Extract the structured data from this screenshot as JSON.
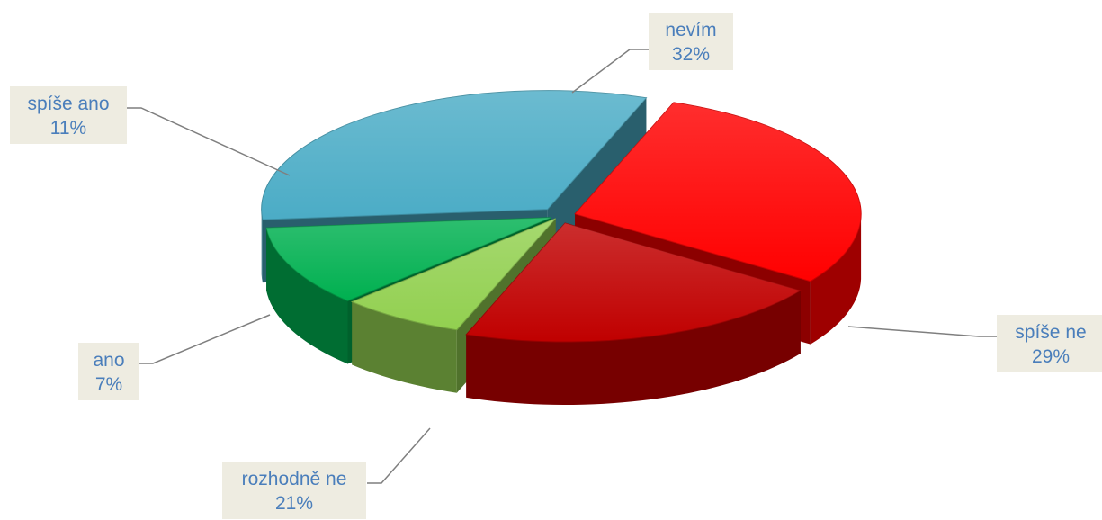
{
  "chart_data": {
    "type": "pie",
    "style": "3d-exploded",
    "slices": [
      {
        "label": "nevím",
        "percent": "32%",
        "value": 32,
        "color": "#4bacc6"
      },
      {
        "label": "spíše ne",
        "percent": "29%",
        "value": 29,
        "color": "#ff0000"
      },
      {
        "label": "rozhodně ne",
        "percent": "21%",
        "value": 21,
        "color": "#c00000"
      },
      {
        "label": "ano",
        "percent": "7%",
        "value": 7,
        "color": "#92d050"
      },
      {
        "label": "spíše ano",
        "percent": "11%",
        "value": 11,
        "color": "#00b050"
      }
    ],
    "label_box_color": "#eeece1",
    "label_text_color": "#4a7ebb",
    "leader_line_color": "#7f7f7f"
  }
}
